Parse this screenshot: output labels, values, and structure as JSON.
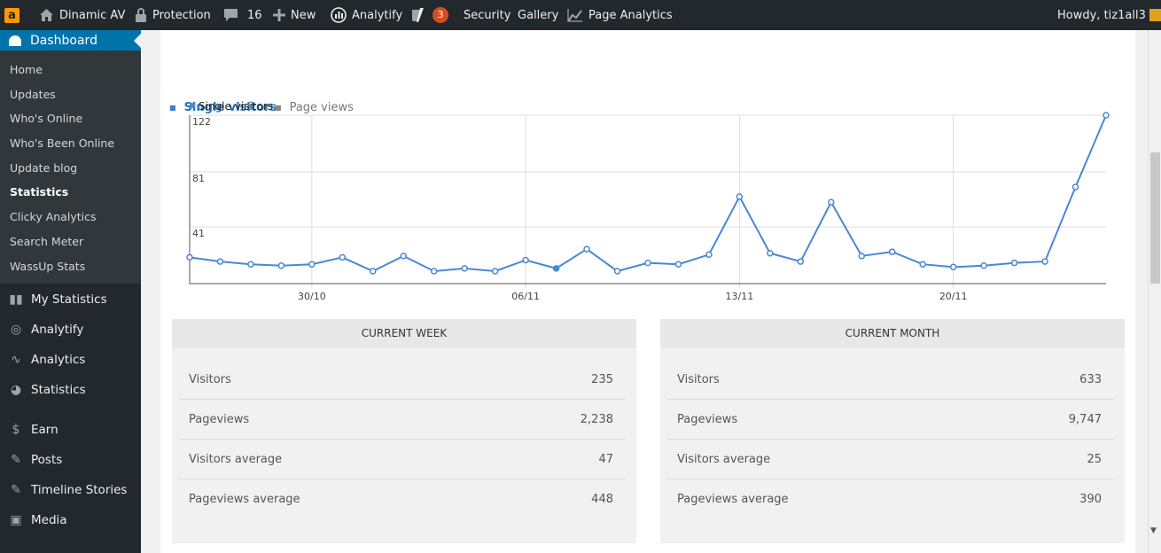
{
  "adminbar": {
    "site": "Dinamic AV",
    "protection": "Protection",
    "comments": "16",
    "new": "New",
    "analytify": "Analytify",
    "yoast_badge": "3",
    "security": "Security",
    "gallery": "Gallery",
    "page_analytics": "Page Analytics",
    "howdy": "Howdy, tiz1all3"
  },
  "sidebar": {
    "dashboard": "Dashboard",
    "submenu": [
      "Home",
      "Updates",
      "Who's Online",
      "Who's Been Online",
      "Update blog",
      "Statistics",
      "Clicky Analytics",
      "Search Meter",
      "WassUp Stats"
    ],
    "menu": [
      "My Statistics",
      "Analytify",
      "Analytics",
      "Statistics",
      "Earn",
      "Posts",
      "Timeline Stories",
      "Media"
    ],
    "menu_icons": [
      "bar-chart-icon",
      "analytify-icon",
      "line-chart-icon",
      "pie-chart-icon",
      "dollar-icon",
      "pin-icon",
      "pin-icon",
      "media-icon"
    ]
  },
  "tabs": {
    "single": "Single visitors",
    "pageviews": "Page views"
  },
  "chart_data": {
    "type": "line",
    "legend": "Single visitors",
    "y_ticks": [
      "122",
      "81",
      "41"
    ],
    "x_ticks": [
      "30/10",
      "06/11",
      "13/11",
      "20/11"
    ],
    "ylim": [
      0,
      122
    ],
    "series": [
      {
        "name": "Single visitors",
        "color": "#4a87d6",
        "values": [
          19,
          16,
          14,
          13,
          14,
          19,
          9,
          20,
          9,
          11,
          9,
          17,
          11,
          25,
          9,
          15,
          14,
          21,
          63,
          22,
          16,
          59,
          20,
          23,
          14,
          12,
          13,
          15,
          16,
          70,
          122
        ]
      }
    ]
  },
  "current_week": {
    "title": "CURRENT WEEK",
    "rows": [
      {
        "label": "Visitors",
        "value": "235"
      },
      {
        "label": "Pageviews",
        "value": "2,238"
      },
      {
        "label": "Visitors average",
        "value": "47"
      },
      {
        "label": "Pageviews average",
        "value": "448"
      }
    ]
  },
  "current_month": {
    "title": "CURRENT MONTH",
    "rows": [
      {
        "label": "Visitors",
        "value": "633"
      },
      {
        "label": "Pageviews",
        "value": "9,747"
      },
      {
        "label": "Visitors average",
        "value": "25"
      },
      {
        "label": "Pageviews average",
        "value": "390"
      }
    ]
  }
}
